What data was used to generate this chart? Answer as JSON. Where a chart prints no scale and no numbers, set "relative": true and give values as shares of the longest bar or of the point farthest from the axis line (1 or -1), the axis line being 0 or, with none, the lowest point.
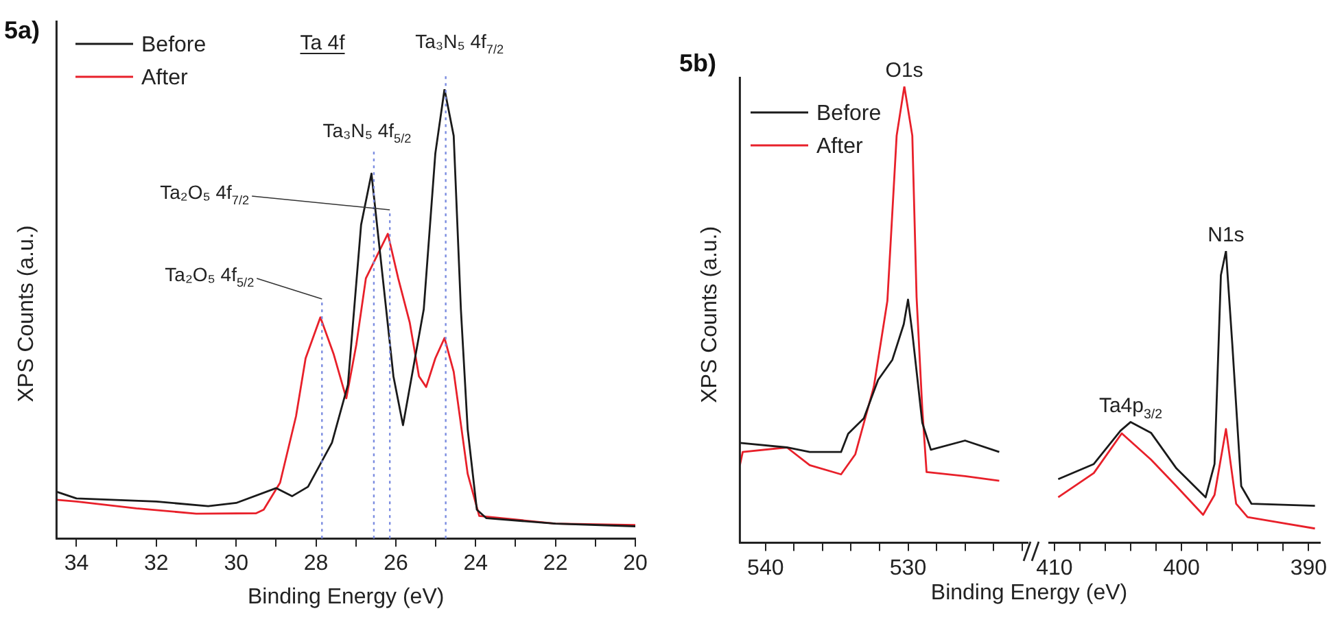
{
  "chart_data": [
    {
      "type": "line",
      "title": "5a)",
      "xlabel": "Binding Energy (eV)",
      "ylabel": "XPS Counts (a.u.)",
      "relative": true,
      "legend": "top left",
      "marker": "none",
      "xlim": [
        34.5,
        20
      ],
      "xticks": [
        34,
        {
          "value": 33,
          "label": null
        },
        32,
        {
          "value": 31,
          "label": null
        },
        30,
        {
          "value": 29,
          "label": null
        },
        28,
        {
          "value": 27,
          "label": null
        },
        26,
        {
          "value": 25,
          "label": null
        },
        24,
        {
          "value": 23,
          "label": null
        },
        22,
        {
          "value": 21,
          "label": null
        },
        20
      ],
      "series": [
        {
          "name": "Before",
          "color": "#1a1a1a",
          "x": [
            34.5,
            34,
            32,
            30.7,
            30,
            29,
            28.6,
            28.2,
            27.6,
            27.2,
            26.87,
            26.61,
            26.06,
            25.82,
            25.3,
            25.01,
            24.78,
            24.55,
            24.37,
            24.2,
            23.97,
            23.73,
            22,
            20
          ],
          "values": [
            0.104,
            0.089,
            0.082,
            0.072,
            0.079,
            0.112,
            0.094,
            0.115,
            0.213,
            0.342,
            0.698,
            0.812,
            0.361,
            0.252,
            0.51,
            0.857,
            1,
            0.896,
            0.51,
            0.243,
            0.064,
            0.045,
            0.033,
            0.027
          ]
        },
        {
          "name": "After",
          "color": "#e8202a",
          "x": [
            34.5,
            34,
            32.5,
            31,
            29.5,
            29.31,
            28.9,
            28.5,
            28.26,
            27.89,
            27.56,
            27.24,
            26.99,
            26.75,
            26.2,
            25.94,
            25.65,
            25.42,
            25.24,
            25.01,
            24.78,
            24.55,
            24.2,
            23.91,
            22,
            20
          ],
          "values": [
            0.086,
            0.082,
            0.067,
            0.055,
            0.056,
            0.064,
            0.124,
            0.272,
            0.401,
            0.492,
            0.411,
            0.312,
            0.431,
            0.579,
            0.678,
            0.579,
            0.48,
            0.361,
            0.337,
            0.401,
            0.446,
            0.371,
            0.144,
            0.05,
            0.033,
            0.03
          ]
        }
      ],
      "ref_lines": [
        {
          "axis": "x",
          "value": 27.85,
          "label": "Ta₂O₅ 4f$_{5/2}$",
          "color": "#7b8ce0",
          "line_style": "dotted"
        },
        {
          "axis": "x",
          "value": 26.55,
          "label": "Ta₃N₅ 4f$_{5/2}$",
          "color": "#7b8ce0",
          "line_style": "dotted"
        },
        {
          "axis": "x",
          "value": 26.15,
          "label": "Ta₂O₅ 4f$_{7/2}$",
          "color": "#7b8ce0",
          "line_style": "dotted"
        },
        {
          "axis": "x",
          "value": 24.75,
          "label": "Ta₃N₅ 4f$_{7/2}$",
          "color": "#7b8ce0",
          "line_style": "dotted"
        }
      ],
      "annotations": [
        "Ta 4f"
      ]
    },
    {
      "type": "line",
      "title": "5b)",
      "xlabel": "Binding Energy (eV)",
      "ylabel": "XPS Counts (a.u.)",
      "relative": true,
      "legend": "top left",
      "marker": "none",
      "xlim": [
        541.8,
        521.6
      ],
      "xticks": [
        540,
        {
          "value": 538,
          "label": null
        },
        {
          "value": 536,
          "label": null
        },
        {
          "value": 534,
          "label": null
        },
        {
          "value": 532,
          "label": null
        },
        530,
        {
          "value": 528,
          "label": null
        },
        {
          "value": 526,
          "label": null
        },
        {
          "value": 524,
          "label": null
        },
        {
          "value": 522,
          "label": null
        }
      ],
      "series": [
        {
          "name": "Before",
          "color": "#1a1a1a",
          "x": [
            541.8,
            538.5,
            536.9,
            534.7,
            534.2,
            533.1,
            532.1,
            531.1,
            530.3,
            530.0,
            529.7,
            529.0,
            528.4,
            526.0,
            523.6
          ],
          "values": [
            0.219,
            0.209,
            0.199,
            0.199,
            0.239,
            0.273,
            0.357,
            0.401,
            0.479,
            0.533,
            0.46,
            0.263,
            0.204,
            0.224,
            0.199
          ]
        },
        {
          "name": "After",
          "color": "#e8202a",
          "x": [
            541.8,
            541.6,
            538.5,
            536.9,
            534.7,
            533.7,
            532.4,
            531.45,
            530.8,
            530.26,
            529.7,
            529.4,
            529.0,
            528.7,
            526.0,
            523.6
          ],
          "values": [
            0.17,
            0.199,
            0.209,
            0.17,
            0.15,
            0.194,
            0.342,
            0.53,
            0.892,
            1,
            0.892,
            0.538,
            0.293,
            0.155,
            0.146,
            0.136
          ]
        }
      ],
      "annotations": [
        {
          "text": "O1s",
          "x": 530.26,
          "y": 1
        }
      ]
    },
    {
      "type": "line",
      "relative": true,
      "marker": "none",
      "xlim": [
        410.4,
        389.1
      ],
      "xticks": [
        410,
        {
          "value": 408,
          "label": null
        },
        {
          "value": 406,
          "label": null
        },
        {
          "value": 404,
          "label": null
        },
        {
          "value": 402,
          "label": null
        },
        400,
        {
          "value": 398,
          "label": null
        },
        {
          "value": 396,
          "label": null
        },
        {
          "value": 394,
          "label": null
        },
        {
          "value": 392,
          "label": null
        },
        390
      ],
      "series": [
        {
          "color": "#1a1a1a",
          "x": [
            409.7,
            406.9,
            404.8,
            404.0,
            402.4,
            400.4,
            398.1,
            397.4,
            396.9,
            396.5,
            396.0,
            395.3,
            394.5,
            389.5
          ],
          "values": [
            0.218,
            0.27,
            0.384,
            0.414,
            0.377,
            0.255,
            0.156,
            0.27,
            0.917,
            1,
            0.679,
            0.194,
            0.134,
            0.127
          ]
        },
        {
          "color": "#e8202a",
          "x": [
            409.7,
            406.9,
            404.7,
            402.4,
            400.4,
            398.3,
            397.4,
            396.5,
            395.7,
            394.8,
            389.5
          ],
          "values": [
            0.156,
            0.239,
            0.375,
            0.285,
            0.194,
            0.096,
            0.164,
            0.39,
            0.134,
            0.088,
            0.049
          ]
        }
      ],
      "annotations": [
        {
          "text": "Ta4p$_{3/2}$",
          "x": 404.0,
          "y": 0.414
        },
        {
          "text": "N1s",
          "x": 396.5,
          "y": 1
        }
      ]
    }
  ]
}
